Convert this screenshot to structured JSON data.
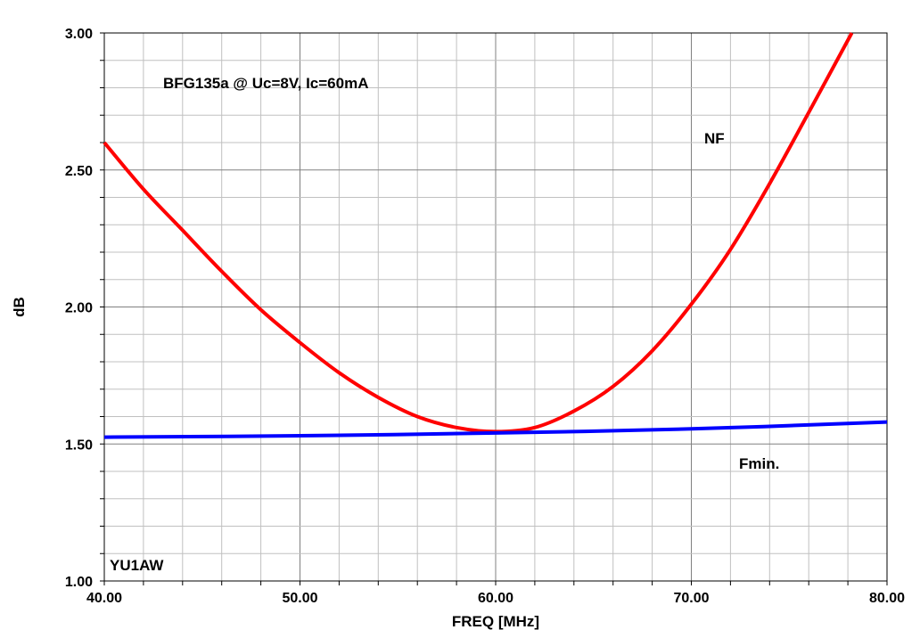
{
  "chart_data": {
    "type": "line",
    "title": "",
    "xlabel": "FREQ [MHz]",
    "ylabel": "dB",
    "xlim": [
      40,
      80
    ],
    "ylim": [
      1.0,
      3.0
    ],
    "x_ticks": [
      40,
      50,
      60,
      70,
      80
    ],
    "x_tick_labels": [
      "40.00",
      "50.00",
      "60.00",
      "70.00",
      "80.00"
    ],
    "y_ticks": [
      1.0,
      1.5,
      2.0,
      2.5,
      3.0
    ],
    "y_tick_labels": [
      "1.00",
      "1.50",
      "2.00",
      "2.50",
      "3.00"
    ],
    "grid": true,
    "annotations": {
      "device": "BFG135a @ Uc=8V, Ic=60mA",
      "author": "YU1AW"
    },
    "series": [
      {
        "name": "NF",
        "color": "#ff0000",
        "x": [
          40,
          42,
          44,
          46,
          48,
          50,
          52,
          54,
          56,
          58,
          60,
          62,
          64,
          66,
          68,
          70,
          72,
          74,
          76,
          78.2
        ],
        "y": [
          2.6,
          2.43,
          2.28,
          2.13,
          1.99,
          1.87,
          1.76,
          1.67,
          1.6,
          1.56,
          1.545,
          1.56,
          1.62,
          1.71,
          1.84,
          2.01,
          2.21,
          2.45,
          2.71,
          3.0
        ]
      },
      {
        "name": "Fmin.",
        "color": "#0000ff",
        "x": [
          40,
          50,
          60,
          70,
          80
        ],
        "y": [
          1.525,
          1.53,
          1.54,
          1.555,
          1.58
        ]
      }
    ]
  }
}
